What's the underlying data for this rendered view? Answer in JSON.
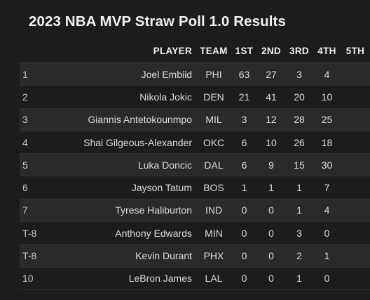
{
  "title": "2023 NBA MVP Straw Poll 1.0 Results",
  "table": {
    "headers": [
      "",
      "PLAYER",
      "TEAM",
      "1ST",
      "2ND",
      "3RD",
      "4TH",
      "5TH"
    ],
    "rows": [
      {
        "rank": "1",
        "player": "Joel Embiid",
        "team": "PHI",
        "v1": "63",
        "v2": "27",
        "v3": "3",
        "v4": "4",
        "v5": ""
      },
      {
        "rank": "2",
        "player": "Nikola Jokic",
        "team": "DEN",
        "v1": "21",
        "v2": "41",
        "v3": "20",
        "v4": "10",
        "v5": ""
      },
      {
        "rank": "3",
        "player": "Giannis Antetokounmpo",
        "team": "MIL",
        "v1": "3",
        "v2": "12",
        "v3": "28",
        "v4": "25",
        "v5": ""
      },
      {
        "rank": "4",
        "player": "Shai Gilgeous-Alexander",
        "team": "OKC",
        "v1": "6",
        "v2": "10",
        "v3": "26",
        "v4": "18",
        "v5": ""
      },
      {
        "rank": "5",
        "player": "Luka Doncic",
        "team": "DAL",
        "v1": "6",
        "v2": "9",
        "v3": "15",
        "v4": "30",
        "v5": ""
      },
      {
        "rank": "6",
        "player": "Jayson Tatum",
        "team": "BOS",
        "v1": "1",
        "v2": "1",
        "v3": "1",
        "v4": "7",
        "v5": ""
      },
      {
        "rank": "7",
        "player": "Tyrese Haliburton",
        "team": "IND",
        "v1": "0",
        "v2": "0",
        "v3": "1",
        "v4": "4",
        "v5": ""
      },
      {
        "rank": "T-8",
        "player": "Anthony Edwards",
        "team": "MIN",
        "v1": "0",
        "v2": "0",
        "v3": "3",
        "v4": "0",
        "v5": ""
      },
      {
        "rank": "T-8",
        "player": "Kevin Durant",
        "team": "PHX",
        "v1": "0",
        "v2": "0",
        "v3": "2",
        "v4": "1",
        "v5": ""
      },
      {
        "rank": "10",
        "player": "LeBron James",
        "team": "LAL",
        "v1": "0",
        "v2": "0",
        "v3": "1",
        "v4": "0",
        "v5": ""
      }
    ]
  }
}
